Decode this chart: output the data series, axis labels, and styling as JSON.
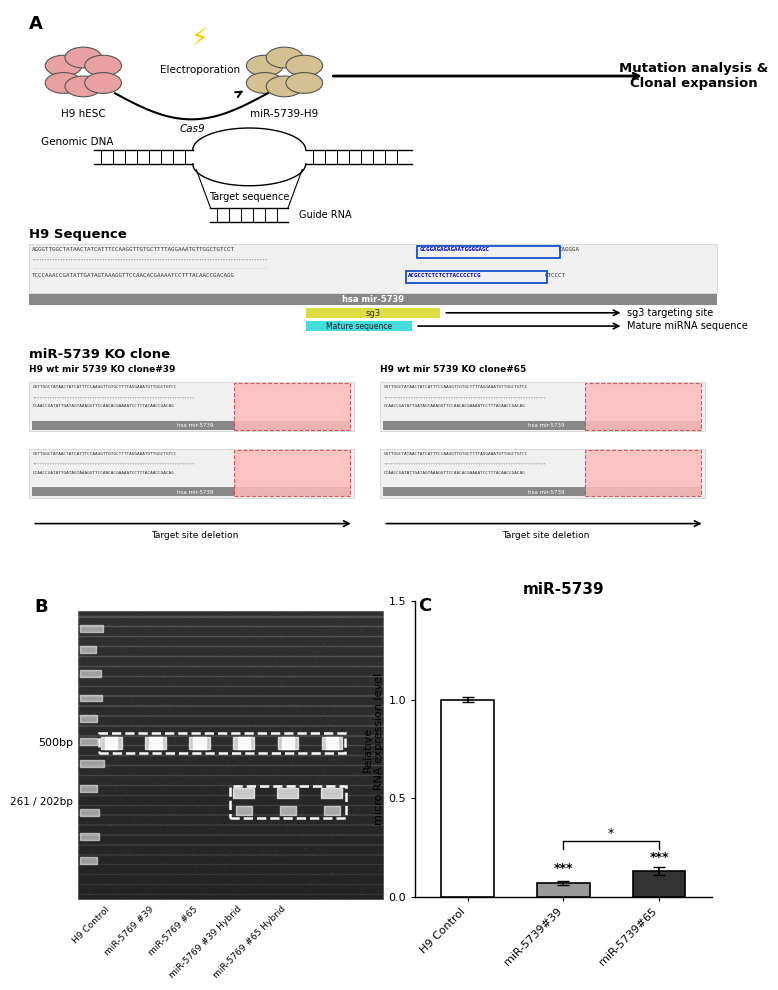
{
  "panel_A_label": "A",
  "panel_B_label": "B",
  "panel_C_label": "C",
  "panel_C_title": "miR-5739",
  "bar_categories": [
    "H9 Control",
    "miR-5739#39",
    "miR-5739#65"
  ],
  "bar_values": [
    1.0,
    0.07,
    0.13
  ],
  "bar_colors": [
    "#ffffff",
    "#999999",
    "#333333"
  ],
  "bar_edge_colors": [
    "#000000",
    "#000000",
    "#000000"
  ],
  "ylabel": "Relative\nmicro RNA expression level",
  "ylim": [
    0,
    1.5
  ],
  "yticks": [
    0.0,
    0.5,
    1.0,
    1.5
  ],
  "significance_39": "***",
  "significance_65": "***",
  "significance_between": "*",
  "electroporation_label": "Electroporation",
  "cas9_label": "Cas9",
  "h9_label": "H9 hESC",
  "mir_h9_label": "miR-5739-H9",
  "mutation_label": "Mutation analysis &\nClonal expansion",
  "genomic_dna_label": "Genomic DNA",
  "target_seq_label": "Target sequence",
  "guide_rna_label": "Guide RNA",
  "h9_seq_label": "H9 Sequence",
  "hsa_mir5739_label": "hsa mir-5739",
  "sg3_label": "sg3",
  "mature_seq_label": "Mature sequence",
  "sg3_targeting": "sg3 targeting site",
  "mature_mirna": "Mature miRNA sequence",
  "ko_clone_label": "miR-5739 KO clone",
  "clone39_title": "H9 wt mir 5739 KO clone#39",
  "clone65_title": "H9 wt mir 5739 KO clone#65",
  "target_deletion_label": "Target site deletion",
  "bp500_label": "500bp",
  "bp261_label": "261 / 202bp",
  "gel_lane_labels": [
    "H9 Control",
    "miR-5769 #39",
    "miR-5769 #65",
    "miR-5769 #39 Hybrid",
    "miR-5769 #65 Hybrid"
  ],
  "background_color": "#ffffff",
  "cell_pink": "#e8a0a0",
  "cell_beige": "#d4c090",
  "seq_box_color": "#f0f0f0",
  "mir_bar_color": "#888888",
  "sg3_color": "#dddd44",
  "mature_color": "#44dddd",
  "pink_del_color": "#ffbbbb",
  "seq_text1": "AGGGTTGGCTATAACTATCATTTCCAAGGTTGTGCTTTTAG GAAATGTTGGCTGTCCT",
  "seq_highlight": "GCGGAGAGAGAATGGGGAGC",
  "seq_end": "CAGGGA",
  "seq_bottom1": "TCCCAAACCGATATTGATAGTAAAGGTTCCAACACGAAAATCCTTTACAACCGACAGG",
  "seq_bottom_hl": "ACGCCTCTCTCTTACCCCTCG",
  "seq_bottom_end": "GTCCCT"
}
